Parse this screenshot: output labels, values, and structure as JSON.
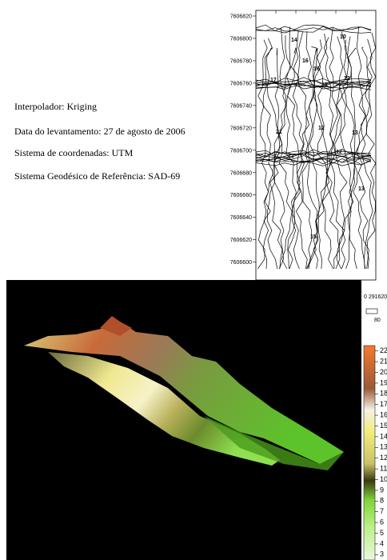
{
  "info": {
    "lines": [
      "Interpolador: Kriging",
      "Data do levantamento: 27 de agosto de 2006",
      "Sistema de coordenadas: UTM",
      "Sistema Geodésico de Referência: SAD-69"
    ]
  },
  "contour_map": {
    "ylim": [
      7606584,
      7606825
    ],
    "yticks": [
      7606820,
      7606800,
      7606780,
      7606760,
      7606740,
      7606720,
      7606700,
      7606680,
      7606660,
      7606640,
      7606620,
      7606600
    ],
    "xtick_label": "0 291620",
    "scale_label": "80",
    "contour_labels": [
      "14",
      "16",
      "16",
      "10",
      "17",
      "18",
      "12",
      "21",
      "12",
      "13",
      "12",
      "12",
      "13",
      "15"
    ]
  },
  "colorbar": {
    "lim": [
      2.5,
      22.5
    ],
    "ticks": [
      22,
      21,
      20,
      19,
      18,
      17,
      16,
      15,
      14,
      13,
      12,
      11,
      10,
      9,
      8,
      7,
      6,
      5,
      4,
      3
    ]
  }
}
